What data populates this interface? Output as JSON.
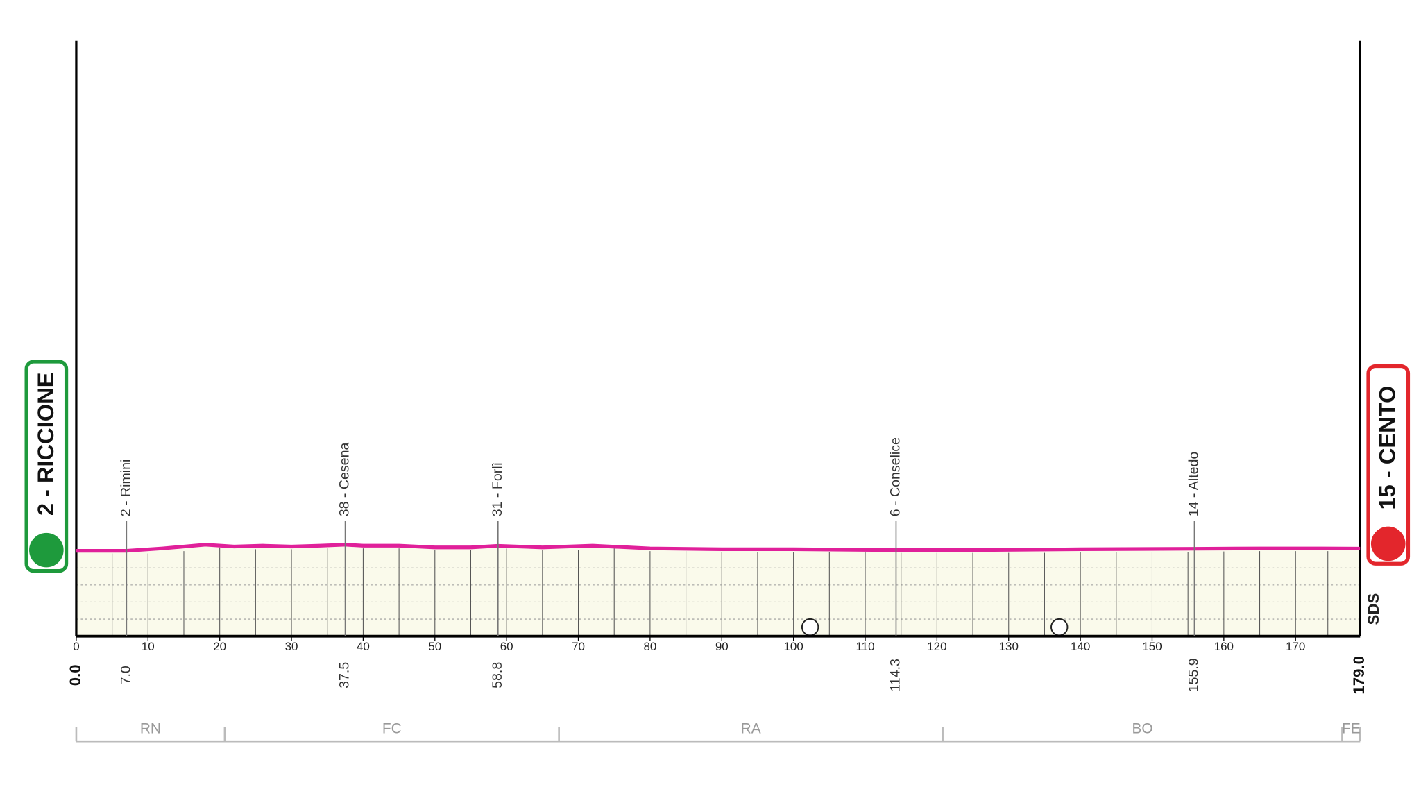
{
  "chart_data": {
    "type": "area",
    "start": {
      "label": "2 - RICCIONE"
    },
    "finish": {
      "label": "15 - CENTO"
    },
    "start_km": {
      "value": 0,
      "label": "0.0"
    },
    "finish_km": {
      "value": 179,
      "label": "179.0"
    },
    "waypoints": [
      {
        "name": "2 - Rimini",
        "km": {
          "value": 7,
          "label": "7.0"
        }
      },
      {
        "name": "38 - Cesena",
        "km": 37.5
      },
      {
        "name": "31 - Forlì",
        "km": 58.8
      },
      {
        "name": "6 - Conselice",
        "km": 114.3
      },
      {
        "name": "14 - Altedo",
        "km": 155.9
      }
    ],
    "x": [
      0,
      7,
      12,
      18,
      22,
      26,
      30,
      34,
      37.5,
      40,
      45,
      50,
      55,
      58.8,
      65,
      72,
      80,
      90,
      100,
      114.3,
      125,
      140,
      155.9,
      165,
      172,
      179
    ],
    "values": [
      2,
      2,
      16,
      38,
      27,
      32,
      27,
      32,
      38,
      32,
      32,
      22,
      22,
      31,
      22,
      32,
      16,
      11,
      11,
      6,
      6,
      11,
      14,
      16,
      16,
      15
    ],
    "color": "#e0209a",
    "fill": "#fafaeb",
    "xlim": [
      0,
      179
    ],
    "xticks": [
      0,
      10,
      20,
      30,
      40,
      50,
      60,
      70,
      80,
      90,
      100,
      110,
      120,
      130,
      140,
      150,
      160,
      170
    ],
    "ylim": [
      -500,
      3000
    ],
    "provinces": [
      {
        "name": "RN",
        "from": 0,
        "to": 20.7
      },
      {
        "name": "FC",
        "from": 20.7,
        "to": 67.3
      },
      {
        "name": "RA",
        "from": 67.3,
        "to": 120.8
      },
      {
        "name": "BO",
        "from": 120.8,
        "to": 176.5
      },
      {
        "name": "FE",
        "from": 176.5,
        "to": 179
      }
    ],
    "logo": "SDS"
  }
}
